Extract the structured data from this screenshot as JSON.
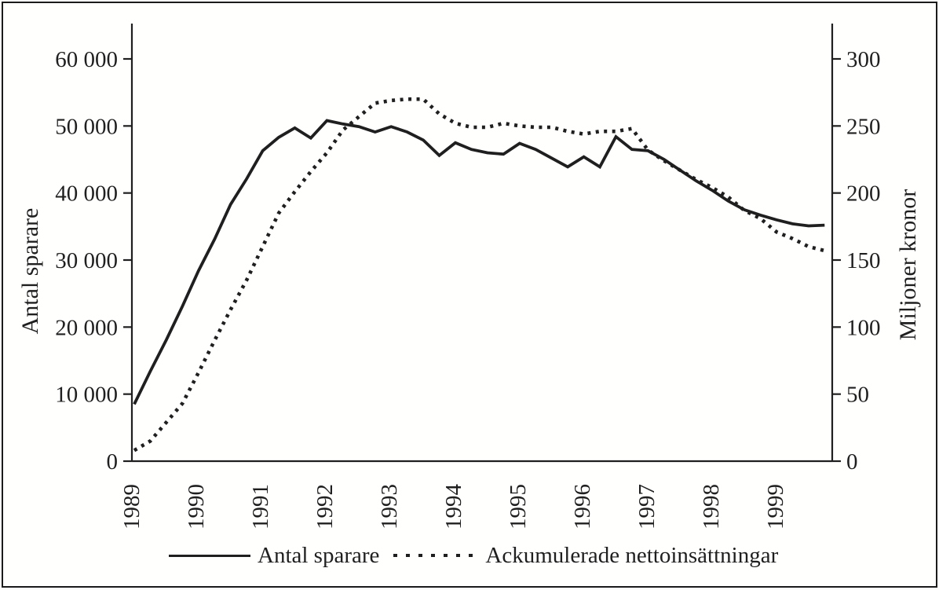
{
  "figure": {
    "background": "#fffffe",
    "border_color": "#1b1b1b",
    "ink_color": "#1f1f1f"
  },
  "chart_data": {
    "type": "line",
    "title": "",
    "x_unit": "quarter",
    "x_start": "1989 Q1",
    "x_end": "1999 Q4",
    "tick_years": [
      1989,
      1990,
      1991,
      1992,
      1993,
      1994,
      1995,
      1996,
      1997,
      1998,
      1999
    ],
    "grid": false,
    "legend_position": "bottom",
    "left_axis": {
      "label": "Antal sparare",
      "min": 0,
      "max": 60000,
      "step": 10000,
      "tick_labels": [
        "0",
        "10 000",
        "20 000",
        "30 000",
        "40 000",
        "50 000",
        "60 000"
      ]
    },
    "right_axis": {
      "label": "Miljoner kronor",
      "min": 0,
      "max": 300,
      "step": 50,
      "tick_labels": [
        "0",
        "50",
        "100",
        "150",
        "200",
        "250",
        "300"
      ]
    },
    "series": [
      {
        "name": "Antal sparare",
        "axis": "left",
        "line_style": "solid",
        "color": "#1f1f1f",
        "values": [
          8500,
          13400,
          18100,
          23100,
          28400,
          33100,
          38300,
          42100,
          46300,
          48300,
          49700,
          48200,
          50800,
          50300,
          49900,
          49100,
          49900,
          49100,
          47900,
          45600,
          47500,
          46500,
          46000,
          45800,
          47400,
          46500,
          45200,
          43900,
          45400,
          43900,
          48400,
          46500,
          46300,
          45000,
          43400,
          41800,
          40400,
          38800,
          37500,
          36700,
          36000,
          35400,
          35100,
          35200
        ]
      },
      {
        "name": "Ackumulerade nettoinsättningar",
        "axis": "right",
        "line_style": "dotted",
        "color": "#1f1f1f",
        "values": [
          8,
          15,
          29,
          43,
          66,
          90,
          113,
          135,
          160,
          185,
          201,
          216,
          230,
          247,
          257,
          267,
          269,
          270,
          270,
          259,
          252,
          249,
          249,
          252,
          250,
          249,
          249,
          246,
          244,
          246,
          246,
          248,
          232,
          224,
          217,
          210,
          204,
          197,
          187,
          181,
          171,
          166,
          160,
          157
        ]
      }
    ],
    "legend": [
      "Antal sparare",
      "Ackumulerade nettoinsättningar"
    ]
  }
}
